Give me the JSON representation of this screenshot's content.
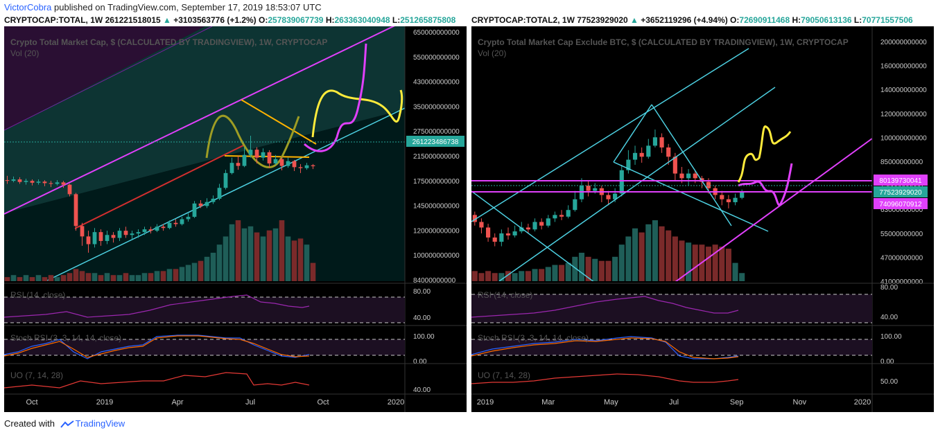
{
  "header": {
    "author": "VictorCobra",
    "published_text": " published on TradingView.com, September 17, 2019 18:53:07 UTC"
  },
  "footer": {
    "created_with": "Created with",
    "brand": "TradingView"
  },
  "panels": [
    {
      "ticker": "CRYPTOCAP:TOTAL, 1W",
      "last": "261221518015",
      "change": "+3103563776 (+1.2%)",
      "o_label": "O:",
      "o": "257839067739",
      "h_label": "H:",
      "h": "263363040948",
      "l_label": "L:",
      "l": "251265875808",
      "title": "Crypto Total Market Cap, $ (CALCULATED BY TRADINGVIEW), 1W, CRYPTOCAP",
      "vol_label": "Vol (20)",
      "rsi_label": "RSI (14, close)",
      "stoch_label": "Stoch RSI (3, 3, 14, 14, close)",
      "uo_label": "UO (7, 14, 28)"
    },
    {
      "ticker": "CRYPTOCAP:TOTAL2, 1W",
      "last": "77523929020",
      "change": "+3652119296 (+4.94%)",
      "o_label": "O:",
      "o": "72690911468",
      "h_label": "H:",
      "h": "79050613136",
      "l_label": "L:",
      "l": "70771557506",
      "title": "Crypto Total Market Cap Exclude BTC, $ (CALCULATED BY TRADINGVIEW), 1W, CRYPTOCAP",
      "vol_label": "Vol (20)",
      "rsi_label": "RSI (14, close)",
      "stoch_label": "Stoch RSI (3, 3, 14, 14, close)",
      "uo_label": "UO (7, 14, 28)"
    }
  ],
  "chart_data": [
    {
      "type": "candlestick",
      "title": "Crypto Total Market Cap, $ (CALCULATED BY TRADINGVIEW), 1W, CRYPTOCAP",
      "y_ticks": [
        "650000000000",
        "550000000000",
        "430000000000",
        "350000000000",
        "275000000000",
        "215000000000",
        "175000000000",
        "145000000000",
        "120000000000",
        "100000000000",
        "84000000000"
      ],
      "x_ticks": [
        "Oct",
        "2019",
        "Apr",
        "Jul",
        "Oct",
        "2020"
      ],
      "price_label": "261223486738",
      "candles": [
        [
          220,
          218,
          232,
          210
        ],
        [
          218,
          222,
          230,
          214
        ],
        [
          222,
          215,
          228,
          210
        ],
        [
          215,
          218,
          224,
          208
        ],
        [
          218,
          213,
          222,
          206
        ],
        [
          213,
          216,
          222,
          208
        ],
        [
          216,
          212,
          220,
          204
        ],
        [
          212,
          210,
          218,
          202
        ],
        [
          210,
          214,
          220,
          206
        ],
        [
          214,
          208,
          218,
          200
        ],
        [
          208,
          185,
          210,
          180
        ],
        [
          185,
          125,
          188,
          118
        ],
        [
          125,
          110,
          130,
          98
        ],
        [
          110,
          100,
          118,
          90
        ],
        [
          100,
          116,
          122,
          96
        ],
        [
          116,
          104,
          120,
          98
        ],
        [
          104,
          112,
          118,
          100
        ],
        [
          112,
          108,
          116,
          102
        ],
        [
          108,
          118,
          122,
          104
        ],
        [
          118,
          112,
          124,
          108
        ],
        [
          112,
          114,
          118,
          106
        ],
        [
          114,
          116,
          120,
          108
        ],
        [
          116,
          120,
          124,
          112
        ],
        [
          120,
          118,
          124,
          114
        ],
        [
          118,
          124,
          128,
          116
        ],
        [
          124,
          122,
          128,
          118
        ],
        [
          122,
          130,
          134,
          120
        ],
        [
          130,
          128,
          136,
          124
        ],
        [
          128,
          136,
          140,
          126
        ],
        [
          136,
          140,
          146,
          132
        ],
        [
          140,
          165,
          170,
          138
        ],
        [
          165,
          160,
          172,
          156
        ],
        [
          160,
          168,
          176,
          156
        ],
        [
          168,
          175,
          182,
          164
        ],
        [
          175,
          200,
          210,
          172
        ],
        [
          200,
          240,
          250,
          196
        ],
        [
          240,
          272,
          290,
          236
        ],
        [
          272,
          262,
          296,
          250
        ],
        [
          262,
          300,
          330,
          258
        ],
        [
          300,
          320,
          380,
          290
        ],
        [
          320,
          290,
          330,
          270
        ],
        [
          290,
          310,
          325,
          280
        ],
        [
          310,
          270,
          318,
          255
        ],
        [
          270,
          285,
          300,
          265
        ],
        [
          285,
          262,
          292,
          248
        ],
        [
          262,
          278,
          290,
          256
        ],
        [
          278,
          258,
          282,
          246
        ],
        [
          258,
          255,
          268,
          240
        ],
        [
          255,
          264,
          272,
          250
        ],
        [
          264,
          261,
          268,
          252
        ]
      ],
      "volume": [
        2,
        3,
        2,
        3,
        2,
        3,
        2,
        3,
        2,
        3,
        4,
        6,
        5,
        4,
        4,
        3,
        4,
        3,
        3,
        4,
        3,
        3,
        4,
        4,
        5,
        5,
        6,
        6,
        7,
        8,
        9,
        10,
        12,
        14,
        18,
        22,
        28,
        30,
        26,
        27,
        24,
        22,
        25,
        26,
        30,
        22,
        20,
        21,
        18,
        9
      ]
    },
    {
      "type": "candlestick",
      "title": "Crypto Total Market Cap Exclude BTC, $ (CALCULATED BY TRADINGVIEW), 1W, CRYPTOCAP",
      "y_ticks": [
        "200000000000",
        "160000000000",
        "140000000000",
        "120000000000",
        "100000000000",
        "85000000000",
        "75000000000",
        "63000000000",
        "55000000000",
        "47000000000",
        "41000000000"
      ],
      "x_ticks": [
        "2019",
        "Mar",
        "May",
        "Jul",
        "Sep",
        "Nov",
        "2020"
      ],
      "price_labels": [
        "80139730041",
        "77523929020",
        "74096070912"
      ],
      "candles": [
        [
          62,
          58,
          64,
          56
        ],
        [
          58,
          55,
          60,
          52
        ],
        [
          55,
          50,
          57,
          48
        ],
        [
          50,
          48,
          52,
          46
        ],
        [
          48,
          52,
          54,
          46
        ],
        [
          52,
          51,
          55,
          49
        ],
        [
          51,
          53,
          56,
          50
        ],
        [
          53,
          55,
          58,
          52
        ],
        [
          55,
          54,
          57,
          52
        ],
        [
          54,
          58,
          60,
          53
        ],
        [
          58,
          56,
          60,
          54
        ],
        [
          56,
          60,
          62,
          55
        ],
        [
          60,
          62,
          64,
          58
        ],
        [
          62,
          61,
          65,
          59
        ],
        [
          61,
          65,
          68,
          60
        ],
        [
          65,
          72,
          78,
          64
        ],
        [
          72,
          82,
          88,
          70
        ],
        [
          82,
          78,
          86,
          74
        ],
        [
          78,
          80,
          84,
          76
        ],
        [
          80,
          75,
          82,
          70
        ],
        [
          75,
          72,
          78,
          68
        ],
        [
          72,
          76,
          80,
          70
        ],
        [
          76,
          95,
          100,
          74
        ],
        [
          95,
          105,
          115,
          92
        ],
        [
          105,
          112,
          120,
          100
        ],
        [
          112,
          108,
          118,
          102
        ],
        [
          108,
          120,
          128,
          106
        ],
        [
          120,
          130,
          140,
          118
        ],
        [
          130,
          118,
          135,
          112
        ],
        [
          118,
          108,
          122,
          100
        ],
        [
          108,
          92,
          112,
          86
        ],
        [
          92,
          88,
          98,
          84
        ],
        [
          88,
          92,
          96,
          82
        ],
        [
          92,
          88,
          95,
          84
        ],
        [
          88,
          85,
          90,
          80
        ],
        [
          85,
          80,
          88,
          76
        ],
        [
          80,
          75,
          82,
          72
        ],
        [
          75,
          72,
          78,
          68
        ],
        [
          72,
          70,
          75,
          66
        ],
        [
          70,
          73,
          76,
          68
        ],
        [
          73,
          77,
          79,
          72
        ]
      ],
      "volume": [
        5,
        4,
        5,
        4,
        4,
        5,
        4,
        5,
        5,
        6,
        6,
        7,
        8,
        8,
        9,
        12,
        14,
        12,
        11,
        10,
        10,
        12,
        18,
        22,
        26,
        24,
        28,
        30,
        27,
        25,
        22,
        20,
        19,
        18,
        18,
        17,
        18,
        17,
        16,
        9,
        4
      ]
    }
  ]
}
